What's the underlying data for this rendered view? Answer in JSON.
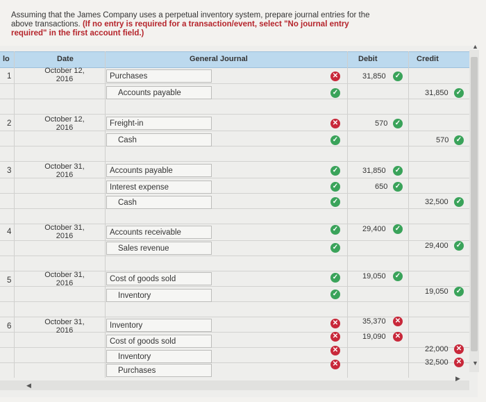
{
  "instructions": {
    "line1": "Assuming that the James Company uses a perpetual inventory system, prepare journal entries for the",
    "line2": "above transactions.",
    "line2_bold": "(If no entry is required for a transaction/event, select \"No journal entry",
    "line3_bold": "required\" in the first account field.)"
  },
  "headers": {
    "no": "lo",
    "date": "Date",
    "journal": "General Journal",
    "debit": "Debit",
    "credit": "Credit"
  },
  "entries": [
    {
      "no": "1",
      "date1": "October 12,",
      "date2": "2016",
      "rows": [
        {
          "account": "Purchases",
          "debit": "31,850",
          "credit": ""
        },
        {
          "account": "Accounts payable",
          "debit": "",
          "credit": "31,850"
        }
      ]
    },
    {
      "no": "2",
      "date1": "October 12,",
      "date2": "2016",
      "rows": [
        {
          "account": "Freight-in",
          "debit": "570",
          "credit": ""
        },
        {
          "account": "Cash",
          "debit": "",
          "credit": "570"
        }
      ]
    },
    {
      "no": "3",
      "date1": "October 31,",
      "date2": "2016",
      "rows": [
        {
          "account": "Accounts payable",
          "debit": "31,850",
          "credit": ""
        },
        {
          "account": "Interest expense",
          "debit": "650",
          "credit": ""
        },
        {
          "account": "Cash",
          "debit": "",
          "credit": "32,500"
        }
      ]
    },
    {
      "no": "4",
      "date1": "October 31,",
      "date2": "2016",
      "rows": [
        {
          "account": "Accounts receivable",
          "debit": "29,400",
          "credit": ""
        },
        {
          "account": "Sales revenue",
          "debit": "",
          "credit": "29,400"
        }
      ]
    },
    {
      "no": "5",
      "date1": "October 31,",
      "date2": "2016",
      "rows": [
        {
          "account": "Cost of goods sold",
          "debit": "19,050",
          "credit": ""
        },
        {
          "account": "Inventory",
          "debit": "",
          "credit": "19,050"
        }
      ]
    },
    {
      "no": "6",
      "date1": "October 31,",
      "date2": "2016",
      "rows": [
        {
          "account": "Inventory",
          "debit": "35,370",
          "credit": ""
        },
        {
          "account": "Cost of goods sold",
          "debit": "19,090",
          "credit": ""
        },
        {
          "account": "Inventory",
          "debit": "",
          "credit": "22,000"
        },
        {
          "account": "Purchases",
          "debit": "",
          "credit": "32,500"
        }
      ]
    }
  ],
  "colors": {
    "correct": "#3aa35a",
    "incorrect": "#c8283a",
    "header_bg": "#bcd9ee"
  }
}
